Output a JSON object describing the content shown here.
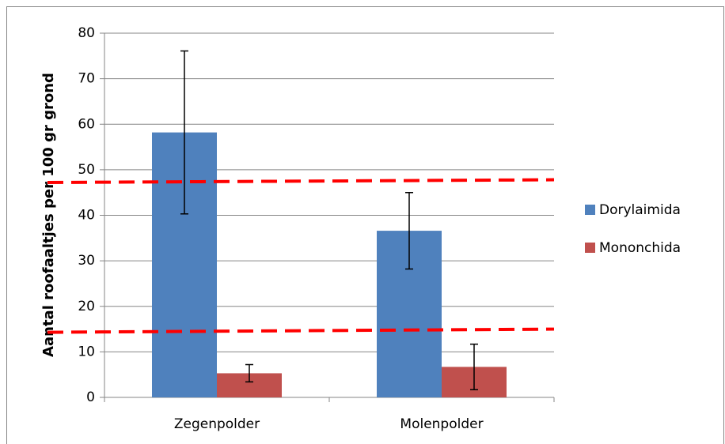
{
  "chart_data": {
    "type": "bar",
    "y_label": "Aantal roofaaltjes per 100 gr grond",
    "categories": [
      "Zegenpolder",
      "Molenpolder"
    ],
    "series": [
      {
        "name": "Dorylaimida",
        "color": "#4f81bd",
        "values": [
          58.2,
          36.6
        ],
        "errors": [
          17.9,
          8.4
        ]
      },
      {
        "name": "Mononchida",
        "color": "#c0504d",
        "values": [
          5.3,
          6.7
        ],
        "errors": [
          1.9,
          5.0
        ]
      }
    ],
    "reference_lines": [
      {
        "color": "#ff0000",
        "values": [
          47.2,
          47.8
        ]
      },
      {
        "color": "#ff0000",
        "values": [
          14.3,
          15.0
        ]
      }
    ],
    "ylim": [
      0,
      80
    ],
    "yticks": [
      0,
      10,
      20,
      30,
      40,
      50,
      60,
      70,
      80
    ],
    "grid": true,
    "legend": "right"
  }
}
